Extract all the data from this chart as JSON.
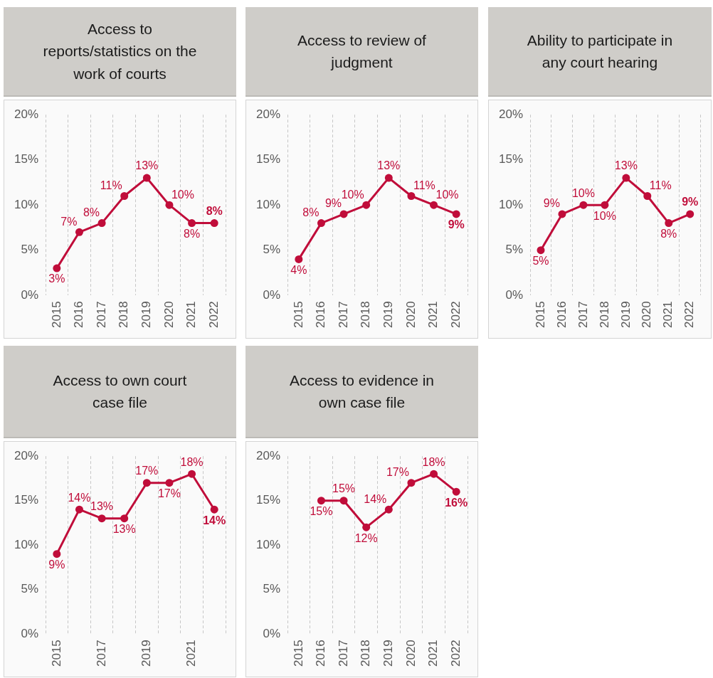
{
  "chart_data": [
    {
      "type": "line",
      "title": "Access to reports/statistics on the work of courts",
      "categories": [
        "2015",
        "2016",
        "2017",
        "2018",
        "2019",
        "2020",
        "2021",
        "2022"
      ],
      "values": [
        3,
        7,
        8,
        11,
        13,
        10,
        8,
        8
      ],
      "value_labels": [
        "3%",
        "7%",
        "8%",
        "11%",
        "13%",
        "10%",
        "8%",
        "8%"
      ],
      "color": "#c00d3a",
      "ylim": [
        0,
        20
      ],
      "yticks": [
        {
          "value": 0,
          "label": "0%"
        },
        {
          "value": 5,
          "label": "5%"
        },
        {
          "value": 10,
          "label": "10%"
        },
        {
          "value": 15,
          "label": "15%"
        },
        {
          "value": 20,
          "label": "20%"
        }
      ],
      "grid": "x",
      "marker": "circle",
      "line_style": "solid"
    },
    {
      "type": "line",
      "title": "Access to review of judgment",
      "categories": [
        "2015",
        "2016",
        "2017",
        "2018",
        "2019",
        "2020",
        "2021",
        "2022"
      ],
      "values": [
        4,
        8,
        9,
        10,
        13,
        11,
        10,
        9
      ],
      "value_labels": [
        "4%",
        "8%",
        "9%",
        "10%",
        "13%",
        "11%",
        "10%",
        "9%"
      ],
      "color": "#c00d3a",
      "ylim": [
        0,
        20
      ],
      "yticks": [
        {
          "value": 0,
          "label": "0%"
        },
        {
          "value": 5,
          "label": "5%"
        },
        {
          "value": 10,
          "label": "10%"
        },
        {
          "value": 15,
          "label": "15%"
        },
        {
          "value": 20,
          "label": "20%"
        }
      ],
      "grid": "x",
      "marker": "circle",
      "line_style": "solid"
    },
    {
      "type": "line",
      "title": "Ability to participate in any court hearing",
      "categories": [
        "2015",
        "2016",
        "2017",
        "2018",
        "2019",
        "2020",
        "2021",
        "2022"
      ],
      "values": [
        5,
        9,
        10,
        10,
        13,
        11,
        8,
        9
      ],
      "value_labels": [
        "5%",
        "9%",
        "10%",
        "10%",
        "13%",
        "11%",
        "8%",
        "9%"
      ],
      "color": "#c00d3a",
      "ylim": [
        0,
        20
      ],
      "yticks": [
        {
          "value": 0,
          "label": "0%"
        },
        {
          "value": 5,
          "label": "5%"
        },
        {
          "value": 10,
          "label": "10%"
        },
        {
          "value": 15,
          "label": "15%"
        },
        {
          "value": 20,
          "label": "20%"
        }
      ],
      "grid": "x",
      "marker": "circle",
      "line_style": "solid"
    },
    {
      "type": "line",
      "title": "Access to own court case file",
      "categories": [
        "2015",
        null,
        "2017",
        null,
        "2019",
        null,
        "2021",
        null
      ],
      "values": [
        9,
        14,
        13,
        13,
        17,
        17,
        18,
        14
      ],
      "value_labels": [
        "9%",
        "14%",
        "13%",
        "13%",
        "17%",
        "17%",
        "18%",
        "14%"
      ],
      "color": "#c00d3a",
      "ylim": [
        0,
        20
      ],
      "yticks": [
        {
          "value": 0,
          "label": "0%"
        },
        {
          "value": 5,
          "label": "5%"
        },
        {
          "value": 10,
          "label": "10%"
        },
        {
          "value": 15,
          "label": "15%"
        },
        {
          "value": 20,
          "label": "20%"
        }
      ],
      "grid": "x",
      "marker": "circle",
      "line_style": "solid"
    },
    {
      "type": "line",
      "title": "Access to evidence in own case file",
      "categories": [
        "2015",
        "2016",
        "2017",
        "2018",
        "2019",
        "2020",
        "2021",
        "2022"
      ],
      "values": [
        null,
        15,
        15,
        12,
        14,
        17,
        18,
        16
      ],
      "value_labels": [
        null,
        "15%",
        "15%",
        "12%",
        "14%",
        "17%",
        "18%",
        "16%"
      ],
      "color": "#c00d3a",
      "ylim": [
        0,
        20
      ],
      "yticks": [
        {
          "value": 0,
          "label": "0%"
        },
        {
          "value": 5,
          "label": "5%"
        },
        {
          "value": 10,
          "label": "10%"
        },
        {
          "value": 15,
          "label": "15%"
        },
        {
          "value": 20,
          "label": "20%"
        }
      ],
      "grid": "x",
      "marker": "circle",
      "line_style": "solid"
    }
  ]
}
